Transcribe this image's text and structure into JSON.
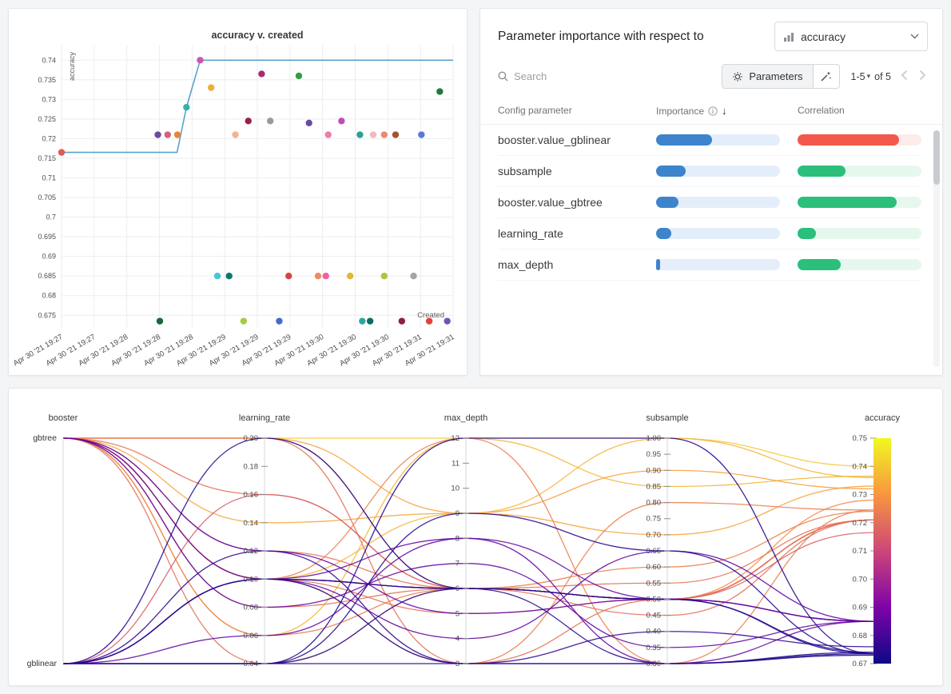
{
  "importance_panel": {
    "title": "Parameter importance with respect to",
    "metric_dropdown": {
      "value": "accuracy"
    },
    "search_placeholder": "Search",
    "parameters_button": "Parameters",
    "pagination": {
      "range": "1-5",
      "of_label": "of 5"
    },
    "columns": {
      "parameter": "Config parameter",
      "importance": "Importance",
      "correlation": "Correlation"
    },
    "icons": {
      "caret_down": "▾",
      "sort_desc": "↓"
    },
    "rows": [
      {
        "name": "booster.value_gblinear",
        "importance": 0.45,
        "correlation": 0.82,
        "correlation_sign": "negative"
      },
      {
        "name": "subsample",
        "importance": 0.24,
        "correlation": 0.39,
        "correlation_sign": "positive"
      },
      {
        "name": "booster.value_gbtree",
        "importance": 0.18,
        "correlation": 0.8,
        "correlation_sign": "positive"
      },
      {
        "name": "learning_rate",
        "importance": 0.12,
        "correlation": 0.15,
        "correlation_sign": "positive"
      },
      {
        "name": "max_depth",
        "importance": 0.03,
        "correlation": 0.35,
        "correlation_sign": "positive"
      }
    ],
    "colors": {
      "importance_fill": "#3d84cc",
      "importance_track": "#e4eefa",
      "positive_fill": "#2cbf7c",
      "positive_track": "#e6f8ee",
      "negative_fill": "#f4584a",
      "negative_track": "#fdeceb"
    }
  },
  "chart_data": [
    {
      "type": "scatter",
      "title": "accuracy v. created",
      "xlabel": "Created",
      "ylabel": "accuracy",
      "x_tick_labels": [
        "Apr 30 '21 19:27",
        "Apr 30 '21 19:27",
        "Apr 30 '21 19:28",
        "Apr 30 '21 19:28",
        "Apr 30 '21 19:28",
        "Apr 30 '21 19:29",
        "Apr 30 '21 19:29",
        "Apr 30 '21 19:29",
        "Apr 30 '21 19:30",
        "Apr 30 '21 19:30",
        "Apr 30 '21 19:30",
        "Apr 30 '21 19:31",
        "Apr 30 '21 19:31"
      ],
      "y_ticks": [
        0.675,
        0.68,
        0.685,
        0.69,
        0.695,
        0.7,
        0.705,
        0.71,
        0.715,
        0.72,
        0.725,
        0.73,
        0.735,
        0.74
      ],
      "ylim": [
        0.672,
        0.7425
      ],
      "line": {
        "color": "#57a3cd",
        "points": [
          [
            0,
            0.7165
          ],
          [
            0.295,
            0.7165
          ],
          [
            0.319,
            0.728
          ],
          [
            0.354,
            0.74
          ],
          [
            1,
            0.74
          ]
        ]
      },
      "points": [
        {
          "x": 0.0,
          "y": 0.7165,
          "color": "#e25a53"
        },
        {
          "x": 0.246,
          "y": 0.721,
          "color": "#6a4c9f"
        },
        {
          "x": 0.271,
          "y": 0.721,
          "color": "#d95f7d"
        },
        {
          "x": 0.296,
          "y": 0.721,
          "color": "#e58637"
        },
        {
          "x": 0.319,
          "y": 0.728,
          "color": "#35b2a8"
        },
        {
          "x": 0.354,
          "y": 0.74,
          "color": "#c957b8"
        },
        {
          "x": 0.382,
          "y": 0.733,
          "color": "#ecb03c"
        },
        {
          "x": 0.444,
          "y": 0.721,
          "color": "#f2b394"
        },
        {
          "x": 0.477,
          "y": 0.7245,
          "color": "#9b1f4f"
        },
        {
          "x": 0.511,
          "y": 0.7365,
          "color": "#ab2a71"
        },
        {
          "x": 0.533,
          "y": 0.7245,
          "color": "#9a9a9a"
        },
        {
          "x": 0.606,
          "y": 0.736,
          "color": "#2f9e44"
        },
        {
          "x": 0.632,
          "y": 0.724,
          "color": "#6b4aa2"
        },
        {
          "x": 0.681,
          "y": 0.721,
          "color": "#ee7bac"
        },
        {
          "x": 0.715,
          "y": 0.7245,
          "color": "#c24bb5"
        },
        {
          "x": 0.762,
          "y": 0.721,
          "color": "#2aa198"
        },
        {
          "x": 0.796,
          "y": 0.721,
          "color": "#f2b8c4"
        },
        {
          "x": 0.824,
          "y": 0.721,
          "color": "#e88a70"
        },
        {
          "x": 0.853,
          "y": 0.721,
          "color": "#a3542e"
        },
        {
          "x": 0.919,
          "y": 0.721,
          "color": "#5b79d8"
        },
        {
          "x": 0.966,
          "y": 0.732,
          "color": "#20793f"
        },
        {
          "x": 0.398,
          "y": 0.685,
          "color": "#49c5d8"
        },
        {
          "x": 0.428,
          "y": 0.685,
          "color": "#0f766e"
        },
        {
          "x": 0.58,
          "y": 0.685,
          "color": "#d64545"
        },
        {
          "x": 0.655,
          "y": 0.685,
          "color": "#ef8a62"
        },
        {
          "x": 0.675,
          "y": 0.685,
          "color": "#ef5fa7"
        },
        {
          "x": 0.737,
          "y": 0.685,
          "color": "#e4b730"
        },
        {
          "x": 0.824,
          "y": 0.685,
          "color": "#b4c23b"
        },
        {
          "x": 0.899,
          "y": 0.685,
          "color": "#a5a5a5"
        },
        {
          "x": 0.251,
          "y": 0.6735,
          "color": "#17683b"
        },
        {
          "x": 0.465,
          "y": 0.6735,
          "color": "#a4cc3f"
        },
        {
          "x": 0.556,
          "y": 0.6735,
          "color": "#4968cf"
        },
        {
          "x": 0.768,
          "y": 0.6735,
          "color": "#2aa8a0"
        },
        {
          "x": 0.788,
          "y": 0.6735,
          "color": "#0b6e62"
        },
        {
          "x": 0.869,
          "y": 0.6735,
          "color": "#8e1d44"
        },
        {
          "x": 0.939,
          "y": 0.6735,
          "color": "#e2413c"
        },
        {
          "x": 0.985,
          "y": 0.6735,
          "color": "#7452b8"
        }
      ]
    },
    {
      "type": "parallel_coordinates",
      "axes": [
        {
          "name": "booster",
          "type": "categorical",
          "categories": [
            "gbtree",
            "gblinear"
          ]
        },
        {
          "name": "learning_rate",
          "min": 0.04,
          "max": 0.2,
          "format": "dec2",
          "ticks": [
            0.04,
            0.06,
            0.08,
            0.1,
            0.12,
            0.14,
            0.16,
            0.18,
            0.2
          ]
        },
        {
          "name": "max_depth",
          "min": 3,
          "max": 12,
          "format": "int",
          "ticks": [
            3,
            4,
            5,
            6,
            7,
            8,
            9,
            10,
            11,
            12
          ]
        },
        {
          "name": "subsample",
          "min": 0.3,
          "max": 1,
          "format": "dec2",
          "ticks": [
            0.3,
            0.35,
            0.4,
            0.45,
            0.5,
            0.55,
            0.6,
            0.65,
            0.7,
            0.75,
            0.8,
            0.85,
            0.9,
            0.95,
            1
          ]
        },
        {
          "name": "accuracy",
          "min": 0.67,
          "max": 0.75,
          "format": "dec2",
          "colorbar": true,
          "ticks": [
            0.67,
            0.68,
            0.69,
            0.7,
            0.71,
            0.72,
            0.73,
            0.74,
            0.75
          ]
        }
      ],
      "color_scale": {
        "name": "plasma",
        "domain": [
          0.67,
          0.75
        ],
        "stops": [
          "#0d0887",
          "#7e03a8",
          "#cc4778",
          "#f89540",
          "#f0f921"
        ]
      },
      "runs": [
        [
          "gbtree",
          0.2,
          12,
          1,
          0.74
        ],
        [
          "gbtree",
          0.06,
          12,
          0.85,
          0.7365
        ],
        [
          "gbtree",
          0.1,
          9,
          1,
          0.736
        ],
        [
          "gbtree",
          0.14,
          9,
          0.7,
          0.733
        ],
        [
          "gbtree",
          0.2,
          9,
          0.9,
          0.732
        ],
        [
          "gbtree",
          0.2,
          6,
          0.5,
          0.728
        ],
        [
          "gbtree",
          0.1,
          12,
          0.3,
          0.7245
        ],
        [
          "gbtree",
          0.1,
          3,
          0.8,
          0.7245
        ],
        [
          "gbtree",
          0.06,
          6,
          0.6,
          0.724
        ],
        [
          "gbtree",
          0.1,
          6,
          0.5,
          0.721
        ],
        [
          "gbtree",
          0.04,
          6,
          0.5,
          0.721
        ],
        [
          "gbtree",
          0.2,
          3,
          0.5,
          0.721
        ],
        [
          "gbtree",
          0.08,
          6,
          0.5,
          0.721
        ],
        [
          "gbtree",
          0.12,
          6,
          0.5,
          0.721
        ],
        [
          "gbtree",
          0.1,
          6,
          0.45,
          0.721
        ],
        [
          "gbtree",
          0.1,
          5,
          0.5,
          0.721
        ],
        [
          "gbtree",
          0.16,
          6,
          0.55,
          0.721
        ],
        [
          "gblinear",
          0.16,
          6,
          0.5,
          0.7165
        ],
        [
          "gblinear",
          0.1,
          6,
          0.5,
          0.685
        ],
        [
          "gbtree",
          0.08,
          7,
          0.35,
          0.685
        ],
        [
          "gblinear",
          0.06,
          8,
          0.5,
          0.685
        ],
        [
          "gbtree",
          0.12,
          5,
          0.5,
          0.685
        ],
        [
          "gblinear",
          0.1,
          4,
          0.65,
          0.685
        ],
        [
          "gbtree",
          0.1,
          8,
          0.3,
          0.685
        ],
        [
          "gblinear",
          0.04,
          3,
          0.3,
          0.673
        ],
        [
          "gblinear",
          0.04,
          6,
          0.5,
          0.674
        ],
        [
          "gblinear",
          0.1,
          3,
          0.3,
          0.6735
        ],
        [
          "gblinear",
          0.04,
          12,
          1,
          0.6735
        ],
        [
          "gblinear",
          0.1,
          6,
          0.3,
          0.674
        ],
        [
          "gblinear",
          0.04,
          9,
          0.65,
          0.6735
        ],
        [
          "gblinear",
          0.2,
          6,
          0.5,
          0.6735
        ],
        [
          "gblinear",
          0.12,
          3,
          0.4,
          0.676
        ]
      ]
    }
  ]
}
